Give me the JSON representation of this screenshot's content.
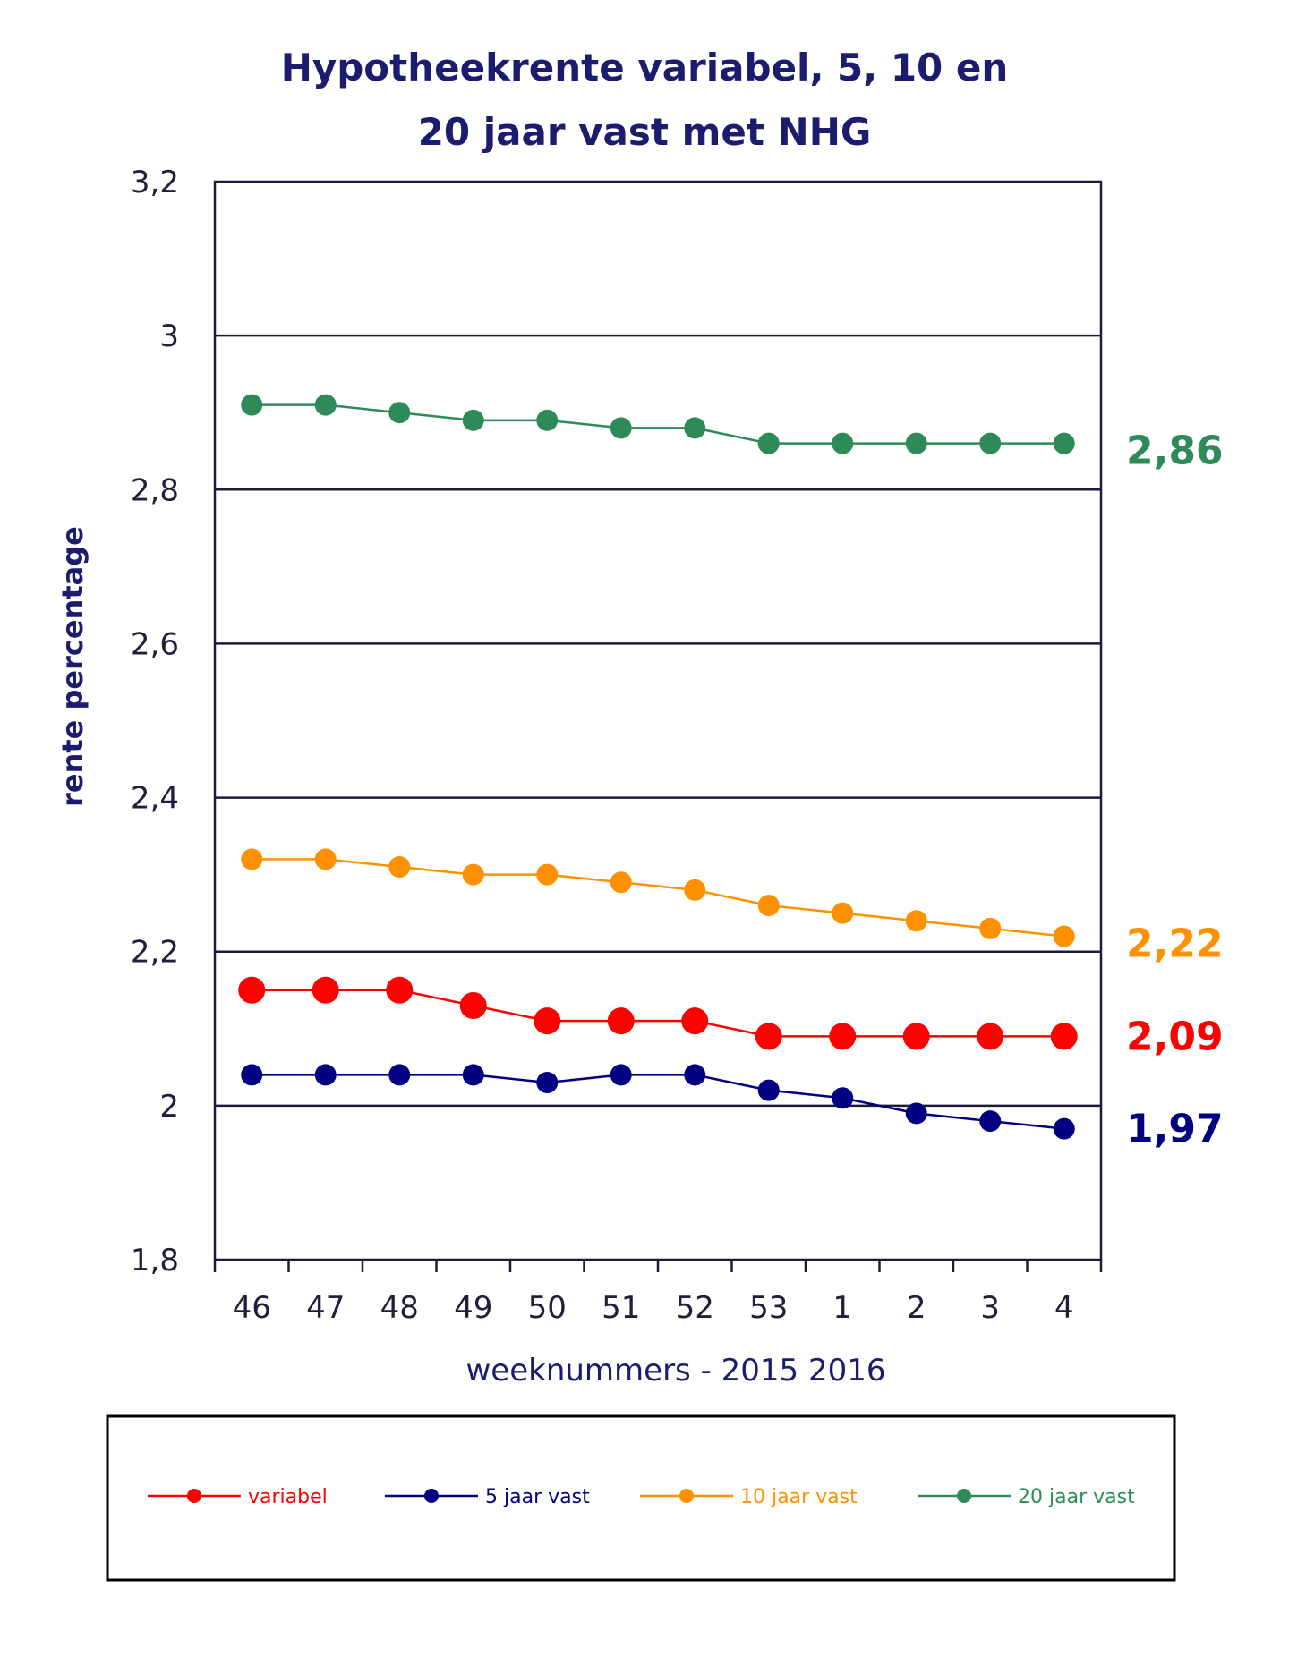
{
  "chart_data": {
    "type": "line",
    "title_line1": "Hypotheekrente variabel, 5, 10 en",
    "title_line2": "20 jaar vast met NHG",
    "xlabel": "weeknummers - 2015 2016",
    "ylabel": "rente percentage",
    "categories": [
      "46",
      "47",
      "48",
      "49",
      "50",
      "51",
      "52",
      "53",
      "1",
      "2",
      "3",
      "4"
    ],
    "ylim": [
      1.8,
      3.2
    ],
    "yticks": [
      {
        "value": 1.8,
        "label": "1,8"
      },
      {
        "value": 2.0,
        "label": "2"
      },
      {
        "value": 2.2,
        "label": "2,2"
      },
      {
        "value": 2.4,
        "label": "2,4"
      },
      {
        "value": 2.6,
        "label": "2,6"
      },
      {
        "value": 2.8,
        "label": "2,8"
      },
      {
        "value": 3.0,
        "label": "3"
      },
      {
        "value": 3.2,
        "label": "3,2"
      }
    ],
    "grid": true,
    "legend": "bottom",
    "series": [
      {
        "name": "variabel",
        "color": "#ff0000",
        "values": [
          2.15,
          2.15,
          2.15,
          2.13,
          2.11,
          2.11,
          2.11,
          2.09,
          2.09,
          2.09,
          2.09,
          2.09
        ],
        "end_label": "2,09"
      },
      {
        "name": "5 jaar vast",
        "color": "#000080",
        "values": [
          2.04,
          2.04,
          2.04,
          2.04,
          2.03,
          2.04,
          2.04,
          2.02,
          2.01,
          1.99,
          1.98,
          1.97
        ],
        "end_label": "1,97"
      },
      {
        "name": "10 jaar vast",
        "color": "#ff9000",
        "values": [
          2.32,
          2.32,
          2.31,
          2.3,
          2.3,
          2.29,
          2.28,
          2.26,
          2.25,
          2.24,
          2.23,
          2.22
        ],
        "end_label": "2,22"
      },
      {
        "name": "20 jaar vast",
        "color": "#2e8b57",
        "values": [
          2.91,
          2.91,
          2.9,
          2.89,
          2.89,
          2.88,
          2.88,
          2.86,
          2.86,
          2.86,
          2.86,
          2.86
        ],
        "end_label": "2,86"
      }
    ]
  }
}
